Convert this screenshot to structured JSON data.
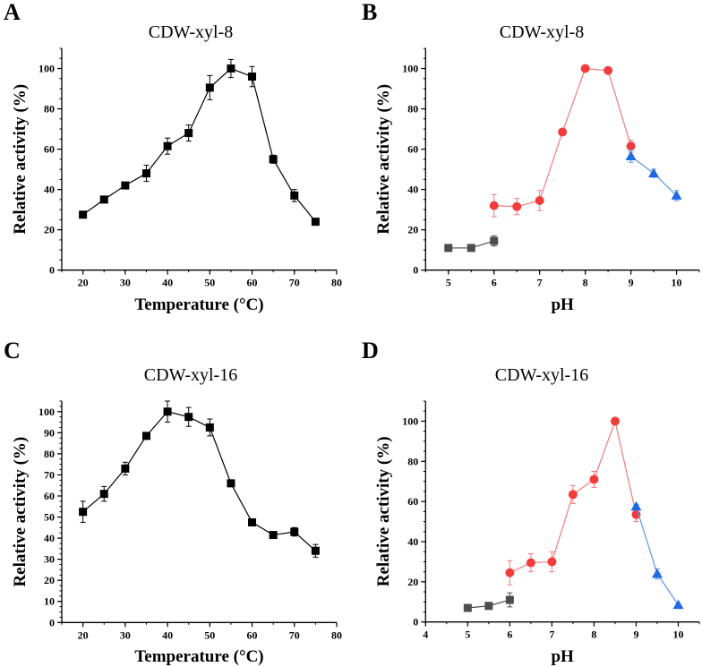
{
  "colors": {
    "axis": "#000000",
    "black_series": "#000000",
    "gray": "#4d4d4d",
    "red": "#f23c3c",
    "red_line": "#f47a7a",
    "blue": "#1f6ae0",
    "blue_line": "#5a95ea"
  },
  "chart_data": [
    {
      "panel": "A",
      "type": "line",
      "title": "CDW-xyl-8",
      "xlabel": "Temperature (°C)",
      "ylabel": "Relative activity (%)",
      "xlim": [
        15,
        80
      ],
      "ylim": [
        0,
        110
      ],
      "xticks": [
        20,
        30,
        40,
        50,
        60,
        70,
        80
      ],
      "yticks": [
        0,
        20,
        40,
        60,
        80,
        100
      ],
      "grid": false,
      "series": [
        {
          "color": "black",
          "marker": "square",
          "x": [
            20,
            25,
            30,
            35,
            40,
            45,
            50,
            55,
            60,
            65,
            70,
            75
          ],
          "y": [
            27.5,
            35,
            42,
            48,
            61.5,
            68,
            90.5,
            100,
            96,
            55,
            37,
            24
          ],
          "err": [
            1.5,
            0.5,
            1,
            4,
            4,
            4,
            6,
            4.5,
            5,
            2,
            3,
            0.5
          ]
        }
      ]
    },
    {
      "panel": "B",
      "type": "line",
      "title": "CDW-xyl-8",
      "xlabel": "pH",
      "ylabel": "Relative activity (%)",
      "xlim": [
        4.5,
        10.5
      ],
      "ylim": [
        0,
        110
      ],
      "xticks": [
        5,
        6,
        7,
        8,
        9,
        10
      ],
      "yticks": [
        0,
        20,
        40,
        60,
        80,
        100
      ],
      "grid": false,
      "series": [
        {
          "color": "gray",
          "marker": "square",
          "x": [
            5,
            5.5,
            6
          ],
          "y": [
            11,
            11,
            14.5
          ],
          "err": [
            0.5,
            0.5,
            2.5
          ]
        },
        {
          "color": "red",
          "marker": "circle",
          "x": [
            6,
            6.5,
            7,
            7.5,
            8,
            8.5,
            9
          ],
          "y": [
            32,
            31.5,
            34.5,
            68.5,
            100,
            99,
            61.5
          ],
          "err": [
            5.5,
            4,
            5,
            0.5,
            0.5,
            1,
            3
          ]
        },
        {
          "color": "blue",
          "marker": "triangle",
          "x": [
            9,
            9.5,
            10
          ],
          "y": [
            56.5,
            48,
            37
          ],
          "err": [
            3,
            2,
            2.5
          ]
        }
      ]
    },
    {
      "panel": "C",
      "type": "line",
      "title": "CDW-xyl-16",
      "xlabel": "Temperature (°C)",
      "ylabel": "Relative activity (%)",
      "xlim": [
        15,
        80
      ],
      "ylim": [
        0,
        105
      ],
      "xticks": [
        20,
        30,
        40,
        50,
        60,
        70,
        80
      ],
      "yticks": [
        0,
        10,
        20,
        30,
        40,
        50,
        60,
        70,
        80,
        90,
        100
      ],
      "grid": false,
      "series": [
        {
          "color": "black",
          "marker": "square",
          "x": [
            20,
            25,
            30,
            35,
            40,
            45,
            50,
            55,
            60,
            65,
            70,
            75
          ],
          "y": [
            52.5,
            61,
            73,
            88.5,
            100,
            97.5,
            92.5,
            66,
            47.5,
            41.5,
            43,
            34
          ],
          "err": [
            5,
            3.5,
            3,
            1,
            5,
            4.5,
            4,
            0.5,
            0.5,
            1.5,
            2,
            3
          ]
        }
      ]
    },
    {
      "panel": "D",
      "type": "line",
      "title": "CDW-xyl-16",
      "xlabel": "pH",
      "ylabel": "Relative activity (%)",
      "xlim": [
        4,
        10.5
      ],
      "ylim": [
        0,
        110
      ],
      "xticks": [
        4,
        5,
        6,
        7,
        8,
        9,
        10
      ],
      "yticks": [
        0,
        20,
        40,
        60,
        80,
        100
      ],
      "grid": false,
      "series": [
        {
          "color": "gray",
          "marker": "square",
          "x": [
            5,
            5.5,
            6
          ],
          "y": [
            7,
            8,
            11
          ],
          "err": [
            0.5,
            0.5,
            3.5
          ]
        },
        {
          "color": "red",
          "marker": "circle",
          "x": [
            6,
            6.5,
            7,
            7.5,
            8,
            8.5,
            9
          ],
          "y": [
            24.5,
            29.5,
            30,
            63.5,
            71,
            100,
            53.5
          ],
          "err": [
            6,
            4.5,
            5,
            4.5,
            4,
            0.5,
            3.5
          ]
        },
        {
          "color": "blue",
          "marker": "triangle",
          "x": [
            9,
            9.5,
            10
          ],
          "y": [
            57.5,
            24,
            8.5
          ],
          "err": [
            1,
            2.5,
            0.5
          ]
        }
      ]
    }
  ]
}
